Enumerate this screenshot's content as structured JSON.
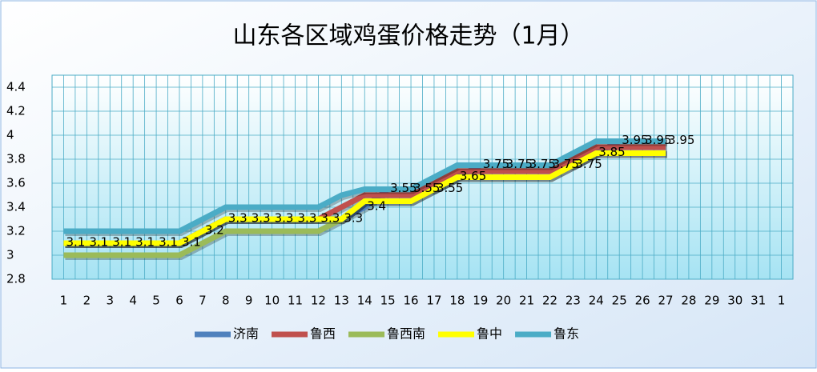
{
  "chart_data": {
    "type": "line",
    "title": "山东各区域鸡蛋价格走势（1月）",
    "categories": [
      "1",
      "2",
      "3",
      "4",
      "5",
      "6",
      "7",
      "8",
      "9",
      "10",
      "11",
      "12",
      "13",
      "14",
      "15",
      "16",
      "17",
      "18",
      "19",
      "20",
      "21",
      "22",
      "23",
      "24",
      "25",
      "26",
      "27",
      "28",
      "29",
      "30",
      "31",
      "1"
    ],
    "ylim": [
      2.8,
      4.5
    ],
    "yticks": [
      2.8,
      3,
      3.2,
      3.4,
      3.6,
      3.8,
      4,
      4.2,
      4.4
    ],
    "grid": true,
    "legend": "bottom",
    "series": [
      {
        "name": "济南",
        "color": "#4f81bd",
        "show_labels": true,
        "values": [
          3.1,
          3.1,
          3.1,
          3.1,
          3.1,
          3.1,
          3.2,
          3.3,
          3.3,
          3.3,
          3.3,
          3.3,
          3.3,
          3.4,
          3.55,
          3.55,
          3.55,
          3.65,
          3.75,
          3.75,
          3.75,
          3.75,
          3.75,
          3.85,
          3.95,
          3.95,
          3.95,
          null,
          null,
          null,
          null,
          null
        ]
      },
      {
        "name": "鲁西",
        "color": "#c0504d",
        "values": [
          3.1,
          3.1,
          3.1,
          3.1,
          3.1,
          3.1,
          3.2,
          3.3,
          3.3,
          3.3,
          3.3,
          3.3,
          3.4,
          3.5,
          3.5,
          3.5,
          3.6,
          3.7,
          3.7,
          3.7,
          3.7,
          3.7,
          3.8,
          3.9,
          3.9,
          3.9,
          3.9,
          null,
          null,
          null,
          null,
          null
        ]
      },
      {
        "name": "鲁西南",
        "color": "#9bbb59",
        "values": [
          3,
          3,
          3,
          3,
          3,
          3,
          3.1,
          3.2,
          3.2,
          3.2,
          3.2,
          3.2,
          3.3,
          3.45,
          3.45,
          3.45,
          3.55,
          3.65,
          3.65,
          3.65,
          3.65,
          3.65,
          3.75,
          3.85,
          3.85,
          3.85,
          3.85,
          null,
          null,
          null,
          null,
          null
        ]
      },
      {
        "name": "鲁中",
        "color": "#ffff00",
        "values": [
          3.1,
          3.1,
          3.1,
          3.1,
          3.1,
          3.1,
          3.2,
          3.3,
          3.3,
          3.3,
          3.3,
          3.3,
          3.3,
          3.45,
          3.45,
          3.45,
          3.55,
          3.65,
          3.65,
          3.65,
          3.65,
          3.65,
          3.75,
          3.85,
          3.85,
          3.85,
          3.85,
          null,
          null,
          null,
          null,
          null
        ]
      },
      {
        "name": "鲁东",
        "color": "#4bacc6",
        "values": [
          3.2,
          3.2,
          3.2,
          3.2,
          3.2,
          3.2,
          3.3,
          3.4,
          3.4,
          3.4,
          3.4,
          3.4,
          3.5,
          3.55,
          3.55,
          3.55,
          3.65,
          3.75,
          3.75,
          3.75,
          3.75,
          3.75,
          3.85,
          3.95,
          3.95,
          3.95,
          3.95,
          null,
          null,
          null,
          null,
          null
        ]
      }
    ]
  }
}
